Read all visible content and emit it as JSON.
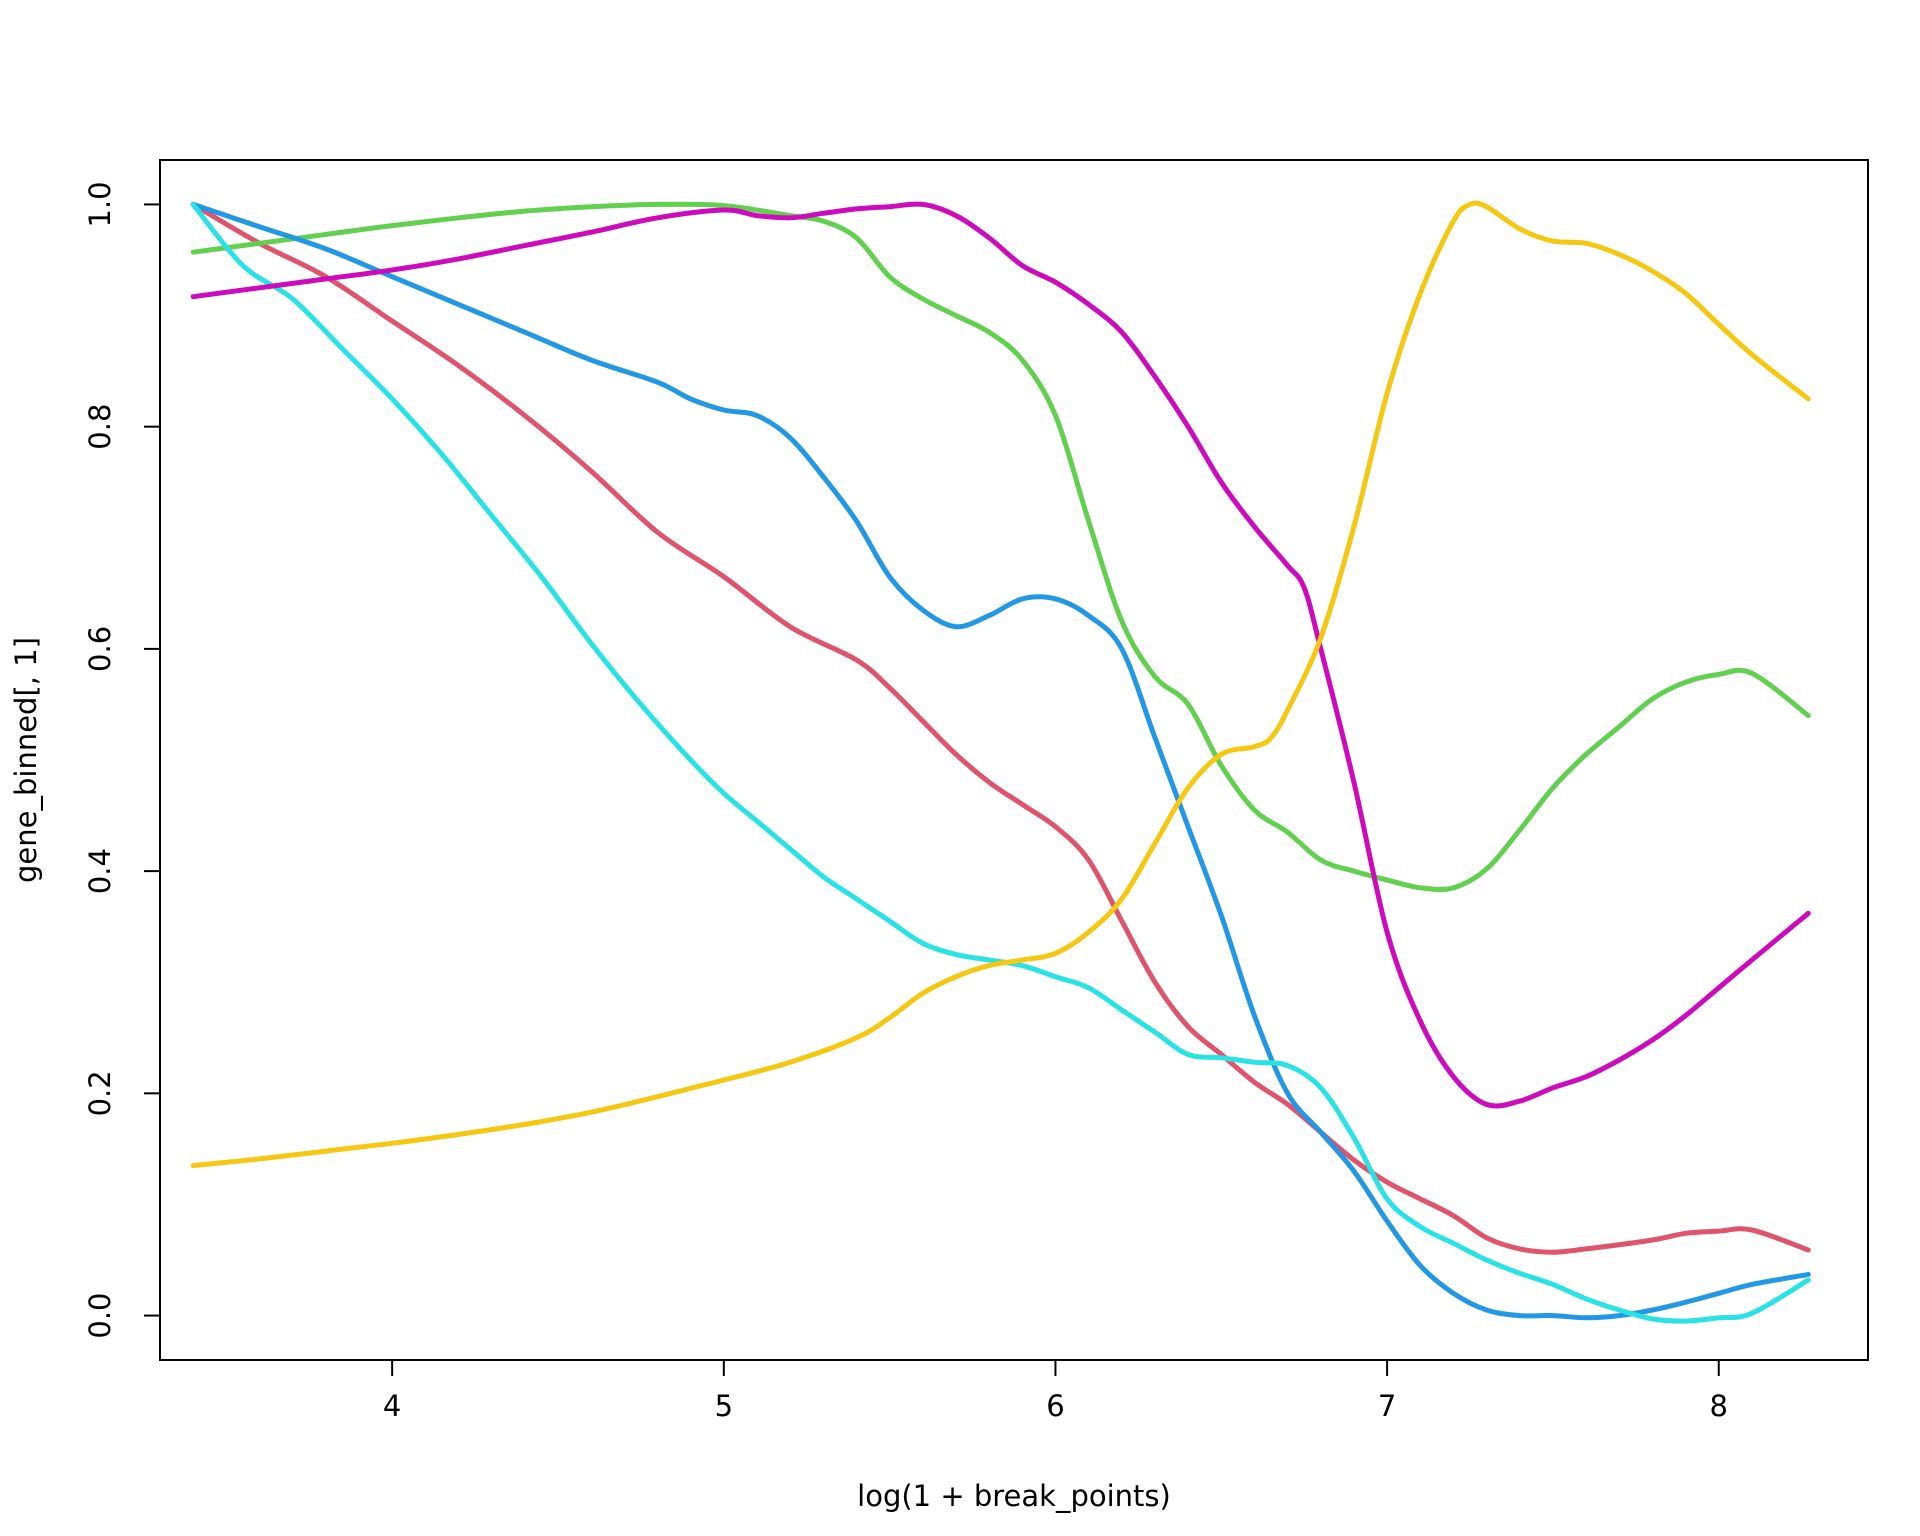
{
  "chart_data": {
    "type": "line",
    "title": "",
    "xlabel": "log(1 + break_points)",
    "ylabel": "gene_binned[, 1]",
    "xlim": [
      3.3,
      8.45
    ],
    "ylim": [
      -0.04,
      1.04
    ],
    "xticks": [
      4,
      5,
      6,
      7,
      8
    ],
    "yticks": [
      0.0,
      0.2,
      0.4,
      0.6,
      0.8,
      1.0
    ],
    "xtick_labels": [
      "4",
      "5",
      "6",
      "7",
      "8"
    ],
    "ytick_labels": [
      "0.0",
      "0.2",
      "0.4",
      "0.6",
      "0.8",
      "1.0"
    ],
    "grid": false,
    "legend": "none",
    "series": [
      {
        "color": "#DF536B",
        "points": [
          [
            3.4,
            1.0
          ],
          [
            3.6,
            0.965
          ],
          [
            3.8,
            0.935
          ],
          [
            4.0,
            0.895
          ],
          [
            4.2,
            0.855
          ],
          [
            4.4,
            0.81
          ],
          [
            4.6,
            0.76
          ],
          [
            4.8,
            0.705
          ],
          [
            5.0,
            0.665
          ],
          [
            5.2,
            0.62
          ],
          [
            5.4,
            0.59
          ],
          [
            5.5,
            0.565
          ],
          [
            5.6,
            0.535
          ],
          [
            5.7,
            0.505
          ],
          [
            5.8,
            0.48
          ],
          [
            5.9,
            0.46
          ],
          [
            6.0,
            0.44
          ],
          [
            6.1,
            0.41
          ],
          [
            6.2,
            0.355
          ],
          [
            6.3,
            0.3
          ],
          [
            6.4,
            0.26
          ],
          [
            6.5,
            0.235
          ],
          [
            6.6,
            0.21
          ],
          [
            6.7,
            0.19
          ],
          [
            6.8,
            0.165
          ],
          [
            6.9,
            0.14
          ],
          [
            7.0,
            0.12
          ],
          [
            7.1,
            0.105
          ],
          [
            7.2,
            0.09
          ],
          [
            7.3,
            0.07
          ],
          [
            7.4,
            0.06
          ],
          [
            7.5,
            0.057
          ],
          [
            7.6,
            0.06
          ],
          [
            7.8,
            0.068
          ],
          [
            7.9,
            0.074
          ],
          [
            8.0,
            0.076
          ],
          [
            8.1,
            0.077
          ],
          [
            8.27,
            0.059
          ]
        ]
      },
      {
        "color": "#61D04F",
        "points": [
          [
            3.4,
            0.957
          ],
          [
            3.6,
            0.965
          ],
          [
            3.8,
            0.973
          ],
          [
            4.0,
            0.981
          ],
          [
            4.2,
            0.988
          ],
          [
            4.4,
            0.994
          ],
          [
            4.6,
            0.998
          ],
          [
            4.8,
            1.0
          ],
          [
            5.0,
            0.999
          ],
          [
            5.2,
            0.99
          ],
          [
            5.3,
            0.985
          ],
          [
            5.4,
            0.97
          ],
          [
            5.5,
            0.935
          ],
          [
            5.6,
            0.915
          ],
          [
            5.7,
            0.9
          ],
          [
            5.8,
            0.885
          ],
          [
            5.9,
            0.86
          ],
          [
            6.0,
            0.81
          ],
          [
            6.1,
            0.715
          ],
          [
            6.2,
            0.625
          ],
          [
            6.3,
            0.575
          ],
          [
            6.4,
            0.55
          ],
          [
            6.5,
            0.495
          ],
          [
            6.6,
            0.455
          ],
          [
            6.7,
            0.435
          ],
          [
            6.8,
            0.41
          ],
          [
            6.9,
            0.4
          ],
          [
            7.0,
            0.392
          ],
          [
            7.1,
            0.385
          ],
          [
            7.2,
            0.385
          ],
          [
            7.3,
            0.402
          ],
          [
            7.4,
            0.437
          ],
          [
            7.5,
            0.475
          ],
          [
            7.6,
            0.505
          ],
          [
            7.7,
            0.53
          ],
          [
            7.8,
            0.555
          ],
          [
            7.9,
            0.57
          ],
          [
            8.0,
            0.577
          ],
          [
            8.1,
            0.578
          ],
          [
            8.27,
            0.54
          ]
        ]
      },
      {
        "color": "#2297E6",
        "points": [
          [
            3.4,
            1.0
          ],
          [
            3.6,
            0.98
          ],
          [
            3.8,
            0.96
          ],
          [
            4.0,
            0.935
          ],
          [
            4.2,
            0.91
          ],
          [
            4.4,
            0.885
          ],
          [
            4.6,
            0.86
          ],
          [
            4.8,
            0.84
          ],
          [
            4.9,
            0.825
          ],
          [
            5.0,
            0.815
          ],
          [
            5.1,
            0.81
          ],
          [
            5.2,
            0.79
          ],
          [
            5.3,
            0.755
          ],
          [
            5.4,
            0.715
          ],
          [
            5.5,
            0.665
          ],
          [
            5.6,
            0.635
          ],
          [
            5.7,
            0.62
          ],
          [
            5.8,
            0.63
          ],
          [
            5.9,
            0.645
          ],
          [
            6.0,
            0.645
          ],
          [
            6.1,
            0.63
          ],
          [
            6.2,
            0.6
          ],
          [
            6.3,
            0.52
          ],
          [
            6.4,
            0.44
          ],
          [
            6.5,
            0.36
          ],
          [
            6.6,
            0.27
          ],
          [
            6.7,
            0.2
          ],
          [
            6.8,
            0.165
          ],
          [
            6.9,
            0.13
          ],
          [
            7.0,
            0.085
          ],
          [
            7.1,
            0.045
          ],
          [
            7.2,
            0.02
          ],
          [
            7.3,
            0.005
          ],
          [
            7.4,
            0.0
          ],
          [
            7.5,
            0.0
          ],
          [
            7.6,
            -0.002
          ],
          [
            7.7,
            0.0
          ],
          [
            7.8,
            0.005
          ],
          [
            7.9,
            0.012
          ],
          [
            8.0,
            0.02
          ],
          [
            8.1,
            0.028
          ],
          [
            8.27,
            0.037
          ]
        ]
      },
      {
        "color": "#28E2E5",
        "points": [
          [
            3.4,
            1.0
          ],
          [
            3.55,
            0.945
          ],
          [
            3.7,
            0.915
          ],
          [
            3.85,
            0.87
          ],
          [
            4.0,
            0.825
          ],
          [
            4.15,
            0.775
          ],
          [
            4.3,
            0.72
          ],
          [
            4.45,
            0.665
          ],
          [
            4.6,
            0.605
          ],
          [
            4.75,
            0.55
          ],
          [
            4.9,
            0.5
          ],
          [
            5.0,
            0.47
          ],
          [
            5.1,
            0.445
          ],
          [
            5.2,
            0.42
          ],
          [
            5.3,
            0.395
          ],
          [
            5.4,
            0.375
          ],
          [
            5.5,
            0.355
          ],
          [
            5.6,
            0.335
          ],
          [
            5.7,
            0.325
          ],
          [
            5.8,
            0.32
          ],
          [
            5.9,
            0.315
          ],
          [
            6.0,
            0.305
          ],
          [
            6.1,
            0.295
          ],
          [
            6.2,
            0.275
          ],
          [
            6.3,
            0.255
          ],
          [
            6.4,
            0.235
          ],
          [
            6.5,
            0.232
          ],
          [
            6.6,
            0.228
          ],
          [
            6.7,
            0.225
          ],
          [
            6.8,
            0.205
          ],
          [
            6.9,
            0.16
          ],
          [
            7.0,
            0.105
          ],
          [
            7.1,
            0.08
          ],
          [
            7.2,
            0.065
          ],
          [
            7.3,
            0.05
          ],
          [
            7.4,
            0.038
          ],
          [
            7.5,
            0.028
          ],
          [
            7.6,
            0.015
          ],
          [
            7.7,
            0.005
          ],
          [
            7.8,
            -0.003
          ],
          [
            7.9,
            -0.005
          ],
          [
            8.0,
            -0.002
          ],
          [
            8.1,
            0.002
          ],
          [
            8.27,
            0.032
          ]
        ]
      },
      {
        "color": "#CD0BBC",
        "points": [
          [
            3.4,
            0.917
          ],
          [
            3.6,
            0.925
          ],
          [
            3.8,
            0.933
          ],
          [
            4.0,
            0.941
          ],
          [
            4.2,
            0.951
          ],
          [
            4.4,
            0.963
          ],
          [
            4.6,
            0.975
          ],
          [
            4.8,
            0.988
          ],
          [
            5.0,
            0.995
          ],
          [
            5.1,
            0.99
          ],
          [
            5.2,
            0.988
          ],
          [
            5.3,
            0.992
          ],
          [
            5.4,
            0.996
          ],
          [
            5.5,
            0.998
          ],
          [
            5.6,
            1.0
          ],
          [
            5.7,
            0.99
          ],
          [
            5.8,
            0.97
          ],
          [
            5.9,
            0.945
          ],
          [
            6.0,
            0.93
          ],
          [
            6.1,
            0.91
          ],
          [
            6.2,
            0.885
          ],
          [
            6.3,
            0.845
          ],
          [
            6.4,
            0.8
          ],
          [
            6.5,
            0.75
          ],
          [
            6.6,
            0.71
          ],
          [
            6.7,
            0.675
          ],
          [
            6.75,
            0.655
          ],
          [
            6.8,
            0.6
          ],
          [
            6.9,
            0.48
          ],
          [
            7.0,
            0.345
          ],
          [
            7.1,
            0.265
          ],
          [
            7.2,
            0.215
          ],
          [
            7.3,
            0.19
          ],
          [
            7.4,
            0.193
          ],
          [
            7.5,
            0.205
          ],
          [
            7.6,
            0.215
          ],
          [
            7.7,
            0.23
          ],
          [
            7.8,
            0.248
          ],
          [
            7.9,
            0.27
          ],
          [
            8.0,
            0.295
          ],
          [
            8.1,
            0.32
          ],
          [
            8.27,
            0.362
          ]
        ]
      },
      {
        "color": "#F5C710",
        "points": [
          [
            3.4,
            0.135
          ],
          [
            3.6,
            0.141
          ],
          [
            3.8,
            0.148
          ],
          [
            4.0,
            0.155
          ],
          [
            4.2,
            0.163
          ],
          [
            4.4,
            0.172
          ],
          [
            4.6,
            0.183
          ],
          [
            4.8,
            0.197
          ],
          [
            5.0,
            0.212
          ],
          [
            5.2,
            0.228
          ],
          [
            5.4,
            0.25
          ],
          [
            5.5,
            0.268
          ],
          [
            5.6,
            0.29
          ],
          [
            5.7,
            0.305
          ],
          [
            5.8,
            0.315
          ],
          [
            5.9,
            0.32
          ],
          [
            6.0,
            0.326
          ],
          [
            6.1,
            0.345
          ],
          [
            6.2,
            0.375
          ],
          [
            6.3,
            0.425
          ],
          [
            6.4,
            0.475
          ],
          [
            6.5,
            0.505
          ],
          [
            6.6,
            0.512
          ],
          [
            6.65,
            0.52
          ],
          [
            6.7,
            0.545
          ],
          [
            6.8,
            0.61
          ],
          [
            6.9,
            0.71
          ],
          [
            7.0,
            0.83
          ],
          [
            7.1,
            0.92
          ],
          [
            7.2,
            0.985
          ],
          [
            7.25,
            1.0
          ],
          [
            7.3,
            0.998
          ],
          [
            7.4,
            0.978
          ],
          [
            7.5,
            0.967
          ],
          [
            7.6,
            0.965
          ],
          [
            7.7,
            0.955
          ],
          [
            7.8,
            0.94
          ],
          [
            7.9,
            0.92
          ],
          [
            8.0,
            0.892
          ],
          [
            8.1,
            0.865
          ],
          [
            8.27,
            0.825
          ]
        ]
      }
    ]
  }
}
